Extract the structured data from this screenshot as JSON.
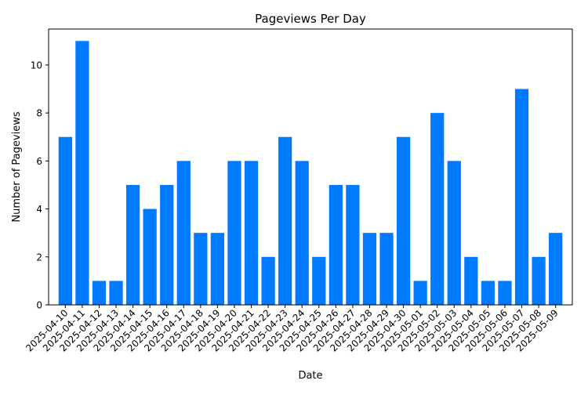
{
  "chart_data": {
    "type": "bar",
    "title": "Pageviews Per Day",
    "xlabel": "Date",
    "ylabel": "Number of Pageviews",
    "ylim": [
      0,
      11.5
    ],
    "yticks": [
      0,
      2,
      4,
      6,
      8,
      10
    ],
    "bar_color": "#007bff",
    "grid": false,
    "categories": [
      "2025-04-10",
      "2025-04-11",
      "2025-04-12",
      "2025-04-13",
      "2025-04-14",
      "2025-04-15",
      "2025-04-16",
      "2025-04-17",
      "2025-04-18",
      "2025-04-19",
      "2025-04-20",
      "2025-04-21",
      "2025-04-22",
      "2025-04-23",
      "2025-04-24",
      "2025-04-25",
      "2025-04-26",
      "2025-04-27",
      "2025-04-28",
      "2025-04-29",
      "2025-04-30",
      "2025-05-01",
      "2025-05-02",
      "2025-05-03",
      "2025-05-04",
      "2025-05-05",
      "2025-05-06",
      "2025-05-07",
      "2025-05-08",
      "2025-05-09"
    ],
    "values": [
      7,
      11,
      1,
      1,
      5,
      4,
      5,
      6,
      3,
      3,
      6,
      6,
      2,
      7,
      6,
      2,
      5,
      5,
      3,
      3,
      7,
      1,
      8,
      6,
      2,
      1,
      1,
      9,
      2,
      3
    ]
  }
}
